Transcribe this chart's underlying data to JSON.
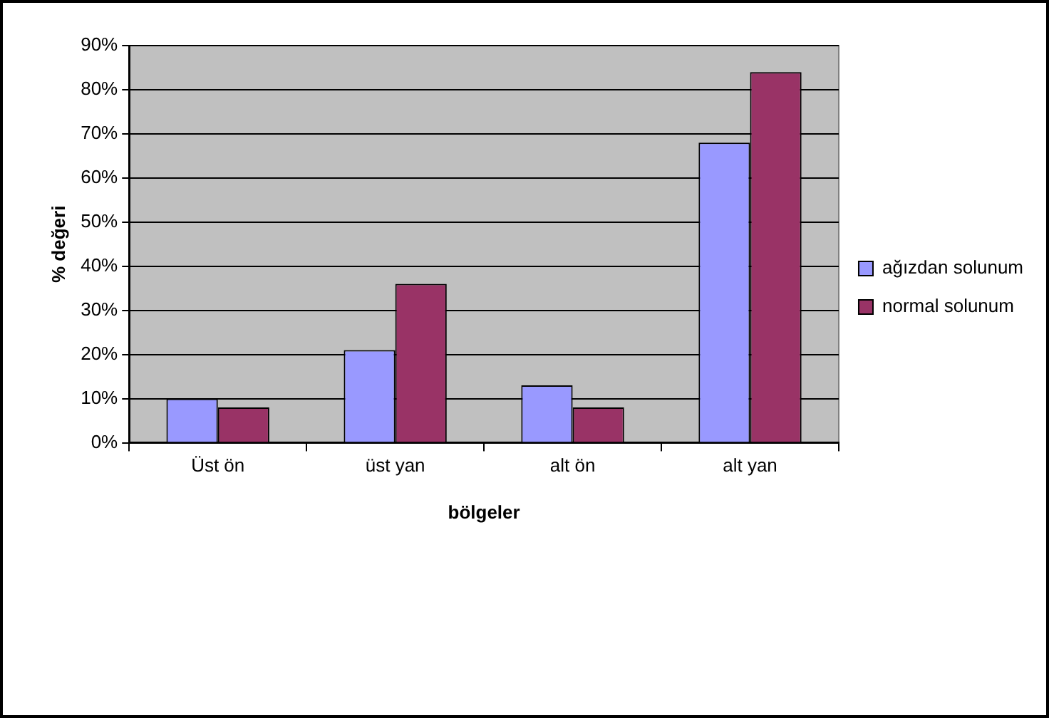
{
  "chart_data": {
    "type": "bar",
    "xlabel": "bölgeler",
    "ylabel": "% değeri",
    "categories": [
      "Üst ön",
      "üst yan",
      "alt ön",
      "alt yan"
    ],
    "series": [
      {
        "name": "ağızdan solunum",
        "color": "#9999ff",
        "values": [
          10,
          21,
          13,
          68
        ]
      },
      {
        "name": "normal solunum",
        "color": "#993366",
        "values": [
          8,
          36,
          8,
          84
        ]
      }
    ],
    "ylim": [
      0,
      90
    ],
    "yticks": [
      {
        "value": 0,
        "label": "0%"
      },
      {
        "value": 10,
        "label": "10%"
      },
      {
        "value": 20,
        "label": "20%"
      },
      {
        "value": 30,
        "label": "30%"
      },
      {
        "value": 40,
        "label": "40%"
      },
      {
        "value": 50,
        "label": "50%"
      },
      {
        "value": 60,
        "label": "60%"
      },
      {
        "value": 70,
        "label": "70%"
      },
      {
        "value": 80,
        "label": "80%"
      },
      {
        "value": 90,
        "label": "90%"
      }
    ],
    "grid": "y",
    "legend": "right"
  }
}
